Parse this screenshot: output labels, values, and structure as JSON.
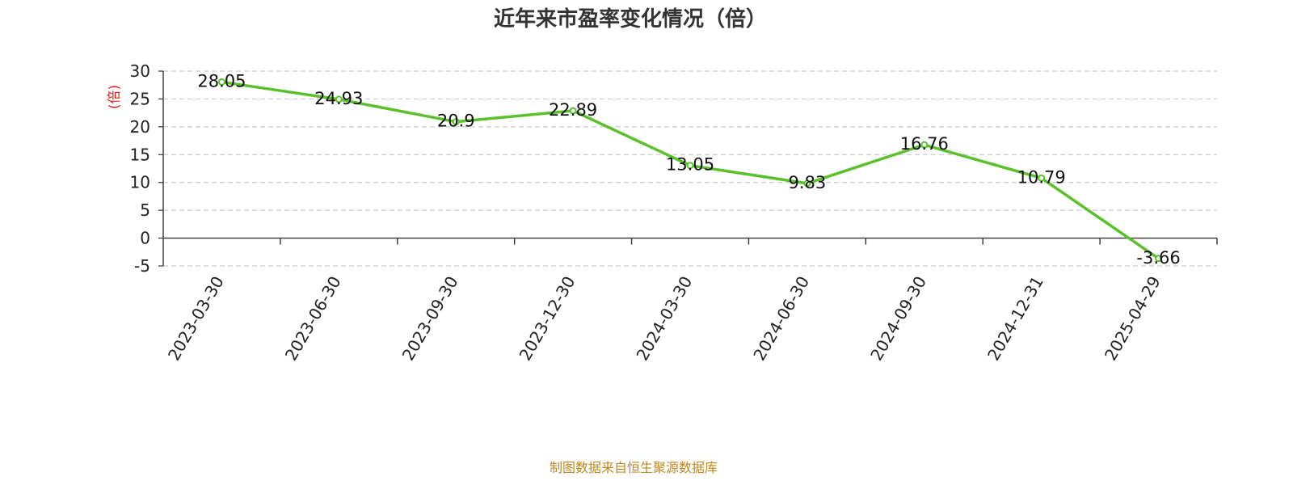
{
  "chart_data": {
    "type": "line",
    "title": "近年来市盈率变化情况（倍）",
    "ylabel": "(倍)",
    "xlabel": "",
    "categories": [
      "2023-03-30",
      "2023-06-30",
      "2023-09-30",
      "2023-12-30",
      "2024-03-30",
      "2024-06-30",
      "2024-09-30",
      "2024-12-31",
      "2025-04-29"
    ],
    "series": [
      {
        "values": [
          28.05,
          24.93,
          20.9,
          22.89,
          13.05,
          9.83,
          16.76,
          10.79,
          -3.66
        ]
      }
    ],
    "data_labels": [
      "28.05",
      "24.93",
      "20.9",
      "22.89",
      "13.05",
      "9.83",
      "16.76",
      "10.79",
      "-3.66"
    ],
    "ylim": [
      -5,
      30
    ],
    "yticks": [
      30,
      25,
      20,
      15,
      10,
      5,
      0,
      -5
    ],
    "grid": true,
    "legend": "none",
    "colors": {
      "line": "#5ac12a",
      "grid": "#cccccc",
      "axis": "#333333",
      "ylabel": "#e02020",
      "source": "#c08820"
    }
  },
  "footer": {
    "source": "制图数据来自恒生聚源数据库"
  }
}
